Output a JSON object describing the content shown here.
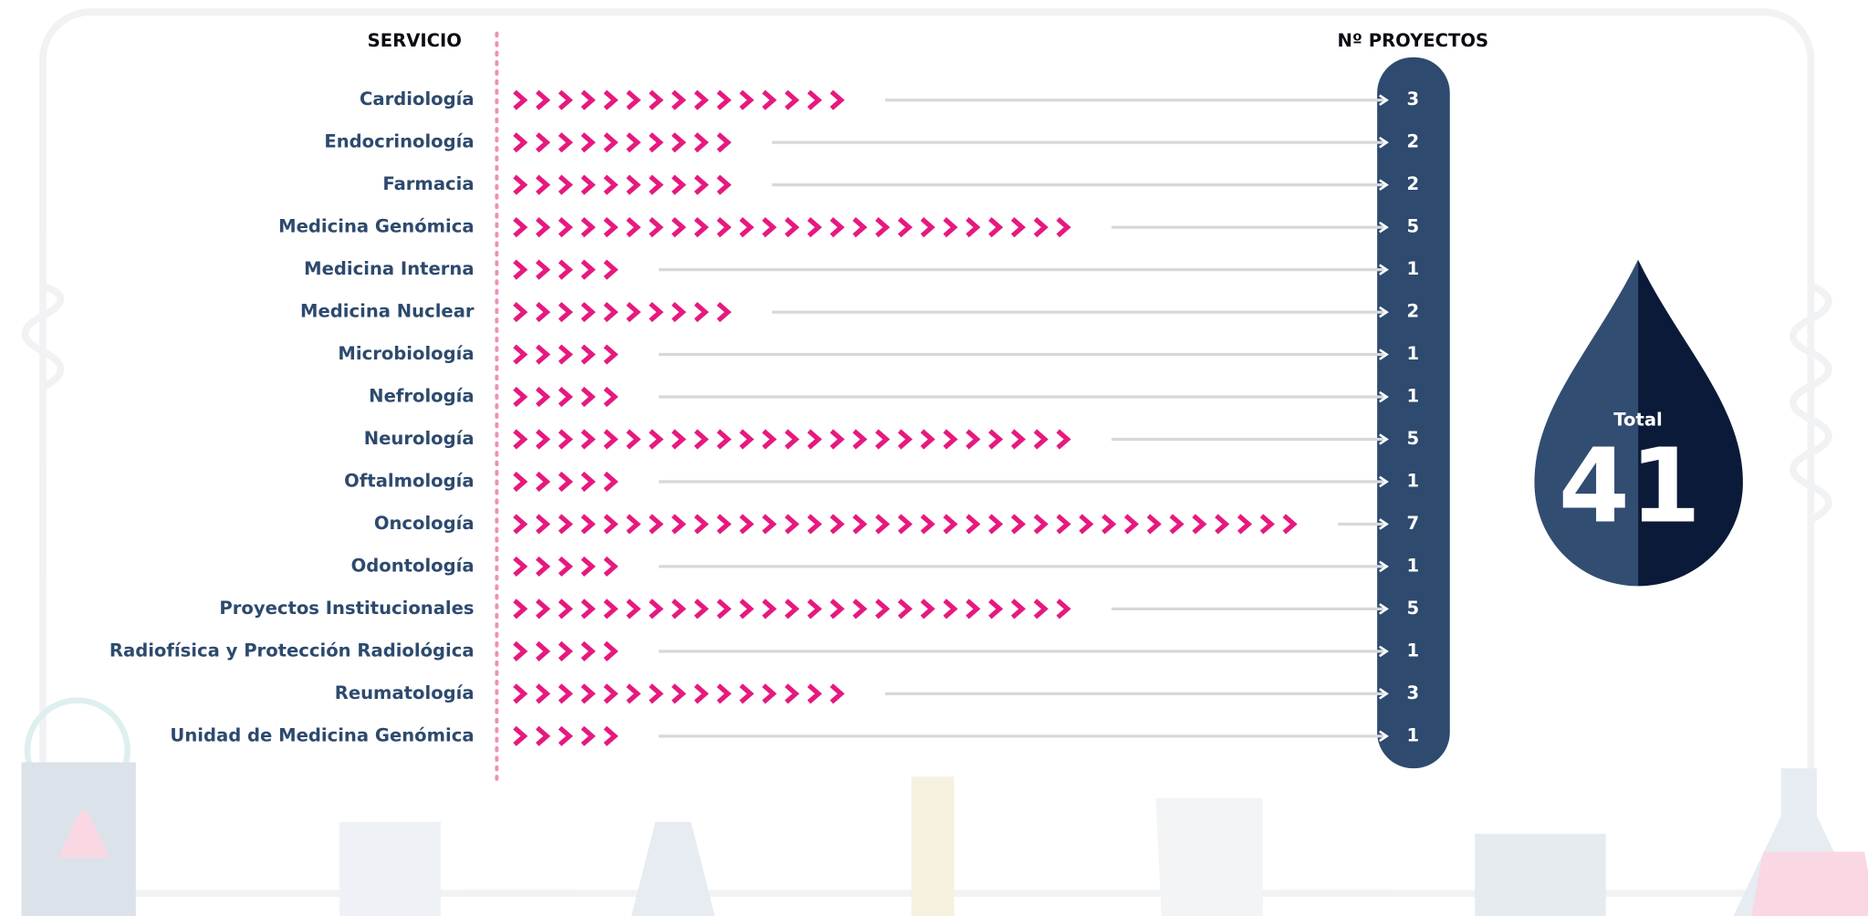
{
  "chart_data": {
    "type": "chevron-bar",
    "category_header": "SERVICIO",
    "value_header": "Nº PROYECTOS",
    "categories": [
      "Cardiología",
      "Endocrinología",
      "Farmacia",
      "Medicina Genómica",
      "Medicina Interna",
      "Medicina Nuclear",
      "Microbiología",
      "Nefrología",
      "Neurología",
      "Oftalmología",
      "Oncología",
      "Odontología",
      "Proyectos Institucionales",
      "Radiofísica y Protección Radiológica",
      "Reumatología",
      "Unidad de Medicina Genómica"
    ],
    "values": [
      3,
      2,
      2,
      5,
      1,
      2,
      1,
      1,
      5,
      1,
      7,
      1,
      5,
      1,
      3,
      1
    ],
    "color": "#e6197f",
    "total": {
      "label": "Total",
      "value": 41
    }
  }
}
